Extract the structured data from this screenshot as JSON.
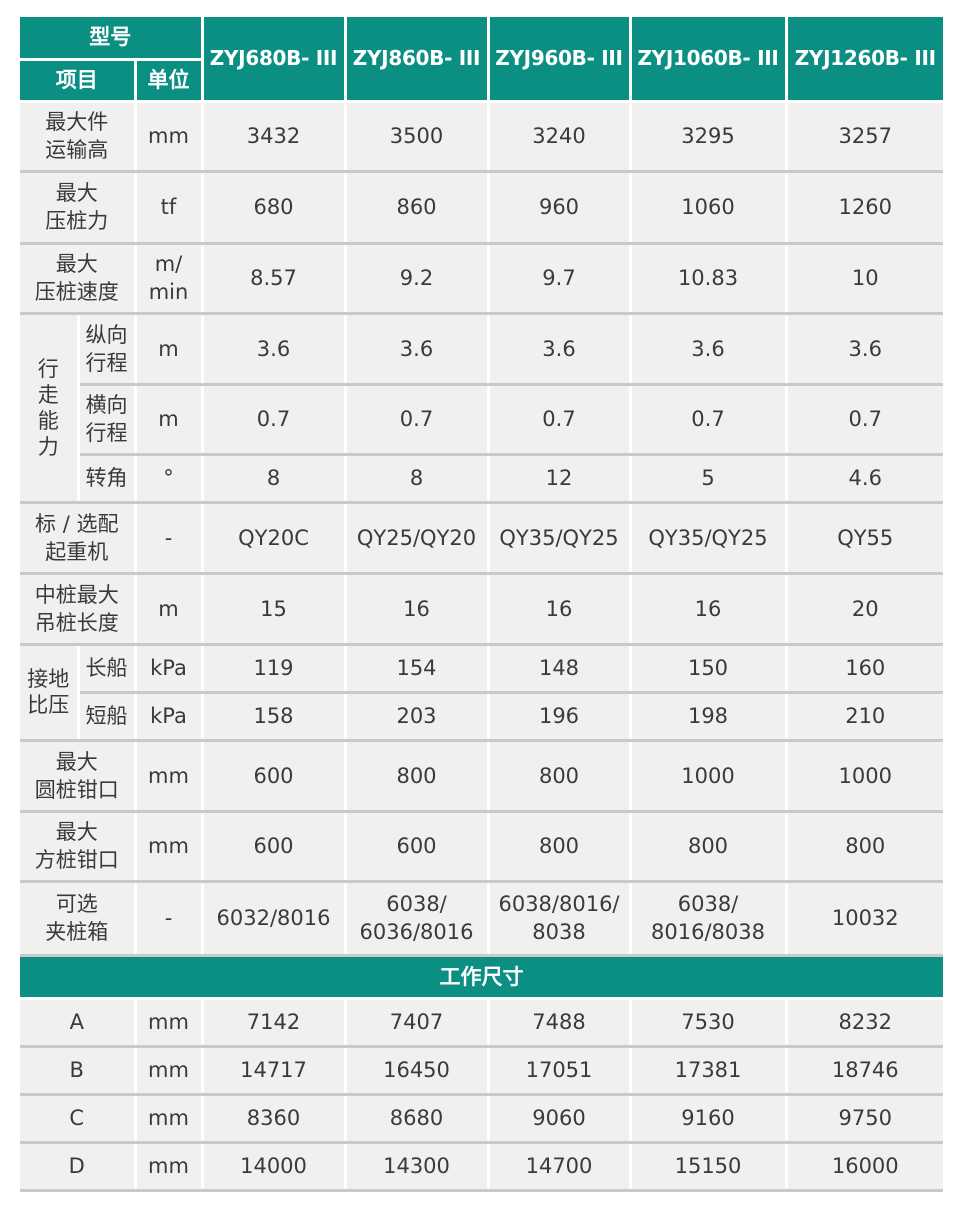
{
  "header": {
    "model_label": "型号",
    "item_label": "项目",
    "unit_label": "单位",
    "models": [
      "ZYJ680B- III",
      "ZYJ860B- III",
      "ZYJ960B- III",
      "ZYJ1060B- III",
      "ZYJ1260B- III"
    ]
  },
  "rows": [
    {
      "item": "最大件\n运输高",
      "unit": "mm",
      "values": [
        "3432",
        "3500",
        "3240",
        "3295",
        "3257"
      ]
    },
    {
      "item": "最大\n压桩力",
      "unit": "tf",
      "values": [
        "680",
        "860",
        "960",
        "1060",
        "1260"
      ]
    },
    {
      "item": "最大\n压桩速度",
      "unit": "m/\nmin",
      "values": [
        "8.57",
        "9.2",
        "9.7",
        "10.83",
        "10"
      ]
    },
    {
      "group": "行\n走\n能\n力",
      "sub": [
        {
          "item": "纵向\n行程",
          "unit": "m",
          "values": [
            "3.6",
            "3.6",
            "3.6",
            "3.6",
            "3.6"
          ]
        },
        {
          "item": "横向\n行程",
          "unit": "m",
          "values": [
            "0.7",
            "0.7",
            "0.7",
            "0.7",
            "0.7"
          ]
        },
        {
          "item": "转角",
          "unit": "°",
          "values": [
            "8",
            "8",
            "12",
            "5",
            "4.6"
          ]
        }
      ]
    },
    {
      "item": "标 / 选配\n起重机",
      "unit": "-",
      "values": [
        "QY20C",
        "QY25/QY20",
        "QY35/QY25",
        "QY35/QY25",
        "QY55"
      ]
    },
    {
      "item": "中桩最大\n吊桩长度",
      "unit": "m",
      "values": [
        "15",
        "16",
        "16",
        "16",
        "20"
      ]
    },
    {
      "group": "接地\n比压",
      "sub": [
        {
          "item": "长船",
          "unit": "kPa",
          "values": [
            "119",
            "154",
            "148",
            "150",
            "160"
          ]
        },
        {
          "item": "短船",
          "unit": "kPa",
          "values": [
            "158",
            "203",
            "196",
            "198",
            "210"
          ]
        }
      ]
    },
    {
      "item": "最大\n圆桩钳口",
      "unit": "mm",
      "values": [
        "600",
        "800",
        "800",
        "1000",
        "1000"
      ]
    },
    {
      "item": "最大\n方桩钳口",
      "unit": "mm",
      "values": [
        "600",
        "600",
        "800",
        "800",
        "800"
      ]
    },
    {
      "item": "可选\n夹桩箱",
      "unit": "-",
      "values": [
        "6032/8016",
        "6038/\n6036/8016",
        "6038/8016/\n8038",
        "6038/\n8016/8038",
        "10032"
      ]
    }
  ],
  "section_title": "工作尺寸",
  "dimensions": [
    {
      "item": "A",
      "unit": "mm",
      "values": [
        "7142",
        "7407",
        "7488",
        "7530",
        "8232"
      ]
    },
    {
      "item": "B",
      "unit": "mm",
      "values": [
        "14717",
        "16450",
        "17051",
        "17381",
        "18746"
      ]
    },
    {
      "item": "C",
      "unit": "mm",
      "values": [
        "8360",
        "8680",
        "9060",
        "9160",
        "9750"
      ]
    },
    {
      "item": "D",
      "unit": "mm",
      "values": [
        "14000",
        "14300",
        "14700",
        "15150",
        "16000"
      ]
    }
  ],
  "colors": {
    "header_bg": "#0b8f83",
    "cell_bg": "#f0f0ef",
    "divider": "#c9c9cd"
  }
}
